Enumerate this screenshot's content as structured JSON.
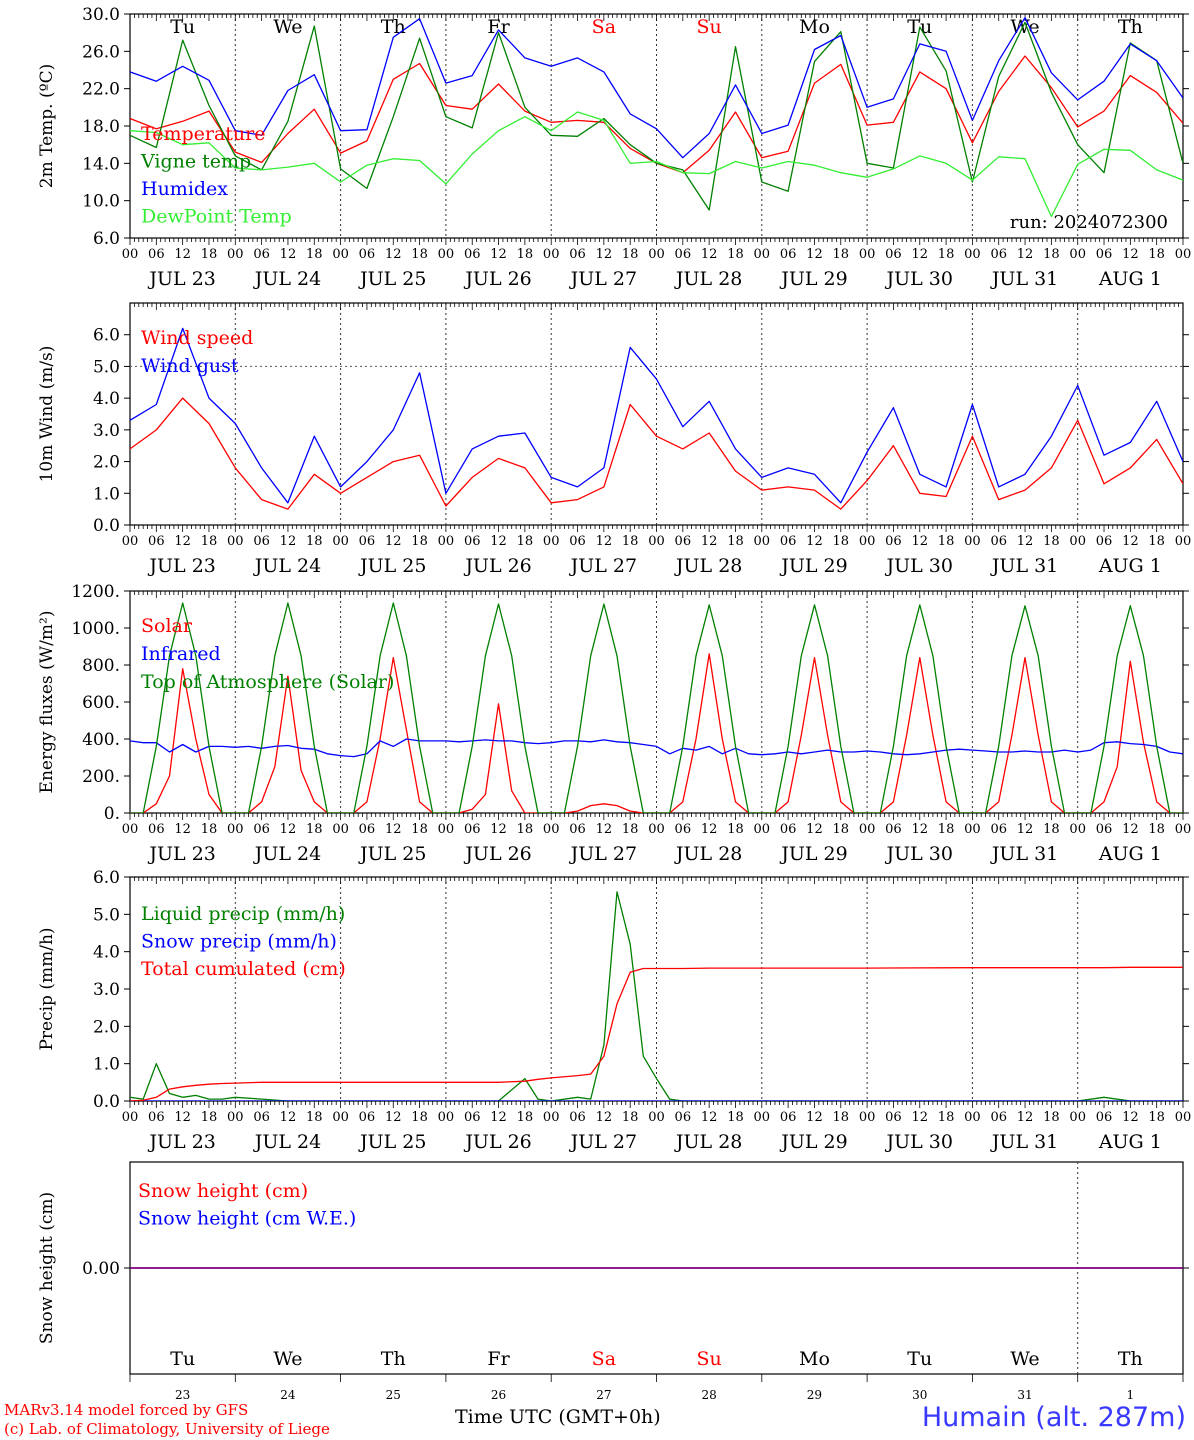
{
  "colors": {
    "red": "#ff0000",
    "green": "#008000",
    "blue": "#0000ff",
    "lightgreen": "#33ee33",
    "purple": "#7f007f",
    "weekend": "#ff0000"
  },
  "weekdays": [
    "Tu",
    "We",
    "Th",
    "Fr",
    "Sa",
    "Su",
    "Mo",
    "Tu",
    "We",
    "Th"
  ],
  "weekend_days": [
    "Sa",
    "Su"
  ],
  "dates": [
    "JUL 23",
    "JUL 24",
    "JUL 25",
    "JUL 26",
    "JUL 27",
    "JUL 28",
    "JUL 29",
    "JUL 30",
    "JUL 31",
    "AUG  1"
  ],
  "day_numbers": [
    "23",
    "24",
    "25",
    "26",
    "27",
    "28",
    "29",
    "30",
    "31",
    "1"
  ],
  "hour_ticks": [
    "00",
    "06",
    "12",
    "18"
  ],
  "run_label": "run: 2024072300",
  "footer": {
    "credit_line1": "MARv3.14 model forced by GFS",
    "credit_line2": "(c) Lab. of Climatology, University of Liege",
    "xaxis_label": "Time UTC (GMT+0h)",
    "station": "Humain (alt. 287m)"
  },
  "chart_data": [
    {
      "type": "line",
      "ylabel": "2m Temp. (ºC)",
      "ylim": [
        6,
        30
      ],
      "yticks": [
        "6.0",
        "10.0",
        "14.0",
        "18.0",
        "22.0",
        "26.0",
        "30.0"
      ],
      "ytick_values": [
        6,
        10,
        14,
        18,
        22,
        26,
        30
      ],
      "x_hours": [
        0,
        6,
        12,
        18,
        24,
        30,
        36,
        42,
        48,
        54,
        60,
        66,
        72,
        78,
        84,
        90,
        96,
        102,
        108,
        114,
        120,
        126,
        132,
        138,
        144,
        150,
        156,
        162,
        168,
        174,
        180,
        186,
        192,
        198,
        204,
        210,
        216,
        222,
        228,
        234,
        240
      ],
      "series": [
        {
          "name": "Temperature",
          "color": "red",
          "values": [
            18.8,
            17.7,
            18.5,
            19.6,
            15.2,
            14.1,
            17.2,
            19.8,
            15.1,
            16.4,
            23.0,
            24.7,
            20.2,
            19.8,
            22.5,
            19.6,
            18.4,
            18.6,
            18.4,
            15.6,
            14.0,
            13.0,
            15.4,
            19.5,
            14.6,
            15.3,
            22.6,
            24.6,
            18.1,
            18.4,
            23.8,
            22.0,
            16.2,
            21.7,
            25.5,
            22.1,
            17.9,
            19.6,
            23.4,
            21.6,
            18.3
          ]
        },
        {
          "name": "Vigne temp",
          "color": "green",
          "values": [
            17.0,
            15.7,
            27.2,
            20.2,
            14.8,
            13.3,
            18.5,
            28.7,
            13.4,
            11.3,
            19.0,
            27.4,
            19.0,
            17.8,
            28.0,
            20.0,
            17.0,
            16.9,
            18.8,
            16.0,
            14.0,
            13.3,
            9.0,
            26.5,
            12.0,
            11.0,
            24.9,
            28.1,
            14.0,
            13.5,
            28.6,
            23.9,
            12.0,
            23.3,
            29.1,
            21.6,
            16.0,
            13.0,
            26.9,
            25.0,
            14.0
          ]
        },
        {
          "name": "Humidex",
          "color": "blue",
          "values": [
            23.8,
            22.8,
            24.4,
            22.9,
            17.5,
            17.0,
            21.8,
            23.5,
            17.5,
            17.6,
            27.5,
            29.5,
            22.6,
            23.4,
            28.3,
            25.3,
            24.4,
            25.3,
            23.8,
            19.3,
            17.7,
            14.6,
            17.2,
            22.4,
            17.2,
            18.1,
            26.2,
            27.7,
            20.0,
            20.9,
            26.8,
            26.0,
            18.6,
            25.0,
            29.6,
            23.7,
            20.8,
            22.8,
            26.8,
            25.0,
            21.0
          ]
        },
        {
          "name": "DewPoint Temp",
          "color": "lightgreen",
          "values": [
            17.5,
            17.3,
            16.0,
            16.2,
            13.5,
            13.3,
            13.6,
            14.0,
            12.0,
            13.8,
            14.5,
            14.3,
            11.8,
            15.0,
            17.5,
            19.0,
            17.5,
            19.5,
            18.6,
            14.0,
            14.2,
            13.0,
            12.9,
            14.2,
            13.5,
            14.2,
            13.8,
            13.0,
            12.5,
            13.4,
            14.8,
            14.0,
            12.2,
            14.7,
            14.5,
            8.3,
            13.9,
            15.5,
            15.4,
            13.3,
            12.2
          ]
        }
      ]
    },
    {
      "type": "line",
      "ylabel": "10m Wind (m/s)",
      "ylim": [
        0,
        7
      ],
      "yticks": [
        "0.0",
        "1.0",
        "2.0",
        "3.0",
        "4.0",
        "5.0",
        "6.0"
      ],
      "ytick_values": [
        0,
        1,
        2,
        3,
        4,
        5,
        6
      ],
      "reference_line": 5.0,
      "x_hours": [
        0,
        6,
        12,
        18,
        24,
        30,
        36,
        42,
        48,
        54,
        60,
        66,
        72,
        78,
        84,
        90,
        96,
        102,
        108,
        114,
        120,
        126,
        132,
        138,
        144,
        150,
        156,
        162,
        168,
        174,
        180,
        186,
        192,
        198,
        204,
        210,
        216,
        222,
        228,
        234,
        240
      ],
      "series": [
        {
          "name": "Wind speed",
          "color": "red",
          "values": [
            2.4,
            3.0,
            4.0,
            3.2,
            1.8,
            0.8,
            0.5,
            1.6,
            1.0,
            1.5,
            2.0,
            2.2,
            0.6,
            1.5,
            2.1,
            1.8,
            0.7,
            0.8,
            1.2,
            3.8,
            2.8,
            2.4,
            2.9,
            1.7,
            1.1,
            1.2,
            1.1,
            0.5,
            1.4,
            2.5,
            1.0,
            0.9,
            2.8,
            0.8,
            1.1,
            1.8,
            3.3,
            1.3,
            1.8,
            2.7,
            1.3
          ]
        },
        {
          "name": "Wind gust",
          "color": "blue",
          "values": [
            3.3,
            3.8,
            6.2,
            4.0,
            3.2,
            1.8,
            0.7,
            2.8,
            1.2,
            2.0,
            3.0,
            4.8,
            1.0,
            2.4,
            2.8,
            2.9,
            1.5,
            1.2,
            1.8,
            5.6,
            4.6,
            3.1,
            3.9,
            2.4,
            1.5,
            1.8,
            1.6,
            0.7,
            2.3,
            3.7,
            1.6,
            1.2,
            3.8,
            1.2,
            1.6,
            2.8,
            4.4,
            2.2,
            2.6,
            3.9,
            2.0
          ]
        }
      ]
    },
    {
      "type": "line",
      "ylabel": "Energy fluxes (W/m²)",
      "ylim": [
        0,
        1200
      ],
      "yticks": [
        "0.",
        "200.",
        "400.",
        "600.",
        "800.",
        "1000.",
        "1200."
      ],
      "ytick_values": [
        0,
        200,
        400,
        600,
        800,
        1000,
        1200
      ],
      "x_hours": [
        0,
        3,
        6,
        9,
        12,
        15,
        18,
        21,
        24,
        27,
        30,
        33,
        36,
        39,
        42,
        45,
        48,
        51,
        54,
        57,
        60,
        63,
        66,
        69,
        72,
        75,
        78,
        81,
        84,
        87,
        90,
        93,
        96,
        99,
        102,
        105,
        108,
        111,
        114,
        117,
        120,
        123,
        126,
        129,
        132,
        135,
        138,
        141,
        144,
        147,
        150,
        153,
        156,
        159,
        162,
        165,
        168,
        171,
        174,
        177,
        180,
        183,
        186,
        189,
        192,
        195,
        198,
        201,
        204,
        207,
        210,
        213,
        216,
        219,
        222,
        225,
        228,
        231,
        234,
        237,
        240
      ],
      "series": [
        {
          "name": "Solar",
          "color": "red",
          "values": [
            0,
            0,
            50,
            200,
            780,
            400,
            100,
            0,
            0,
            0,
            60,
            250,
            740,
            230,
            60,
            0,
            0,
            0,
            60,
            400,
            840,
            450,
            60,
            0,
            0,
            0,
            20,
            100,
            590,
            120,
            0,
            0,
            0,
            0,
            10,
            40,
            50,
            40,
            10,
            0,
            0,
            0,
            60,
            400,
            860,
            400,
            60,
            0,
            0,
            0,
            60,
            420,
            840,
            420,
            60,
            0,
            0,
            0,
            60,
            420,
            840,
            420,
            60,
            0,
            0,
            0,
            60,
            420,
            840,
            420,
            60,
            0,
            0,
            0,
            60,
            250,
            820,
            380,
            60,
            0,
            0
          ]
        },
        {
          "name": "Infrared",
          "color": "blue",
          "values": [
            390,
            380,
            380,
            330,
            370,
            330,
            360,
            360,
            355,
            360,
            350,
            360,
            365,
            350,
            345,
            320,
            310,
            305,
            320,
            390,
            360,
            400,
            390,
            390,
            390,
            385,
            390,
            395,
            390,
            390,
            380,
            375,
            380,
            390,
            390,
            385,
            395,
            385,
            380,
            370,
            360,
            320,
            350,
            340,
            360,
            320,
            350,
            320,
            315,
            320,
            330,
            320,
            330,
            340,
            330,
            330,
            335,
            330,
            320,
            315,
            320,
            330,
            340,
            345,
            340,
            335,
            330,
            330,
            335,
            330,
            330,
            340,
            330,
            340,
            380,
            385,
            375,
            370,
            360,
            330,
            320
          ]
        },
        {
          "name": "Top of Atmosphere (Solar)",
          "color": "green",
          "values": [
            0,
            0,
            360,
            850,
            1135,
            850,
            360,
            0,
            0,
            0,
            360,
            850,
            1135,
            850,
            360,
            0,
            0,
            0,
            360,
            850,
            1135,
            850,
            360,
            0,
            0,
            0,
            360,
            850,
            1130,
            850,
            360,
            0,
            0,
            0,
            360,
            850,
            1130,
            850,
            360,
            0,
            0,
            0,
            360,
            850,
            1125,
            850,
            360,
            0,
            0,
            0,
            360,
            850,
            1125,
            850,
            360,
            0,
            0,
            0,
            360,
            850,
            1125,
            850,
            360,
            0,
            0,
            0,
            360,
            850,
            1120,
            850,
            360,
            0,
            0,
            0,
            360,
            850,
            1120,
            850,
            360,
            0,
            0
          ]
        }
      ]
    },
    {
      "type": "line",
      "ylabel": "Precip (mm/h)",
      "ylim": [
        0,
        6
      ],
      "yticks": [
        "0.0",
        "1.0",
        "2.0",
        "3.0",
        "4.0",
        "5.0",
        "6.0"
      ],
      "ytick_values": [
        0,
        1,
        2,
        3,
        4,
        5,
        6
      ],
      "x_hours": [
        0,
        3,
        6,
        9,
        12,
        15,
        18,
        21,
        24,
        30,
        36,
        48,
        60,
        72,
        84,
        90,
        93,
        96,
        102,
        105,
        108,
        111,
        114,
        117,
        120,
        123,
        126,
        132,
        144,
        168,
        192,
        216,
        222,
        228,
        240
      ],
      "series": [
        {
          "name": "Liquid precip (mm/h)",
          "color": "green",
          "values": [
            0.1,
            0.05,
            1.0,
            0.2,
            0.1,
            0.15,
            0.05,
            0.05,
            0.1,
            0.05,
            0,
            0,
            0,
            0,
            0,
            0.6,
            0.05,
            0,
            0.1,
            0.05,
            1.5,
            5.6,
            4.2,
            1.2,
            0.6,
            0.05,
            0,
            0,
            0,
            0,
            0,
            0,
            0.1,
            0,
            0
          ]
        },
        {
          "name": "Snow precip (mm/h)",
          "color": "blue",
          "values": [
            0,
            0,
            0,
            0,
            0,
            0,
            0,
            0,
            0,
            0,
            0,
            0,
            0,
            0,
            0,
            0,
            0,
            0,
            0,
            0,
            0,
            0,
            0,
            0,
            0,
            0,
            0,
            0,
            0,
            0,
            0,
            0,
            0,
            0,
            0
          ]
        },
        {
          "name": "Total cumulated (cm)",
          "color": "red",
          "values": [
            0,
            0.02,
            0.1,
            0.32,
            0.38,
            0.42,
            0.45,
            0.47,
            0.48,
            0.5,
            0.5,
            0.5,
            0.5,
            0.5,
            0.5,
            0.53,
            0.58,
            0.62,
            0.68,
            0.72,
            1.2,
            2.6,
            3.45,
            3.55,
            3.55,
            3.55,
            3.55,
            3.56,
            3.56,
            3.56,
            3.57,
            3.57,
            3.57,
            3.58,
            3.58
          ]
        }
      ]
    },
    {
      "type": "line",
      "ylabel": "Snow height (cm)",
      "ylim": [
        -1,
        1
      ],
      "yticks": [
        "0.00"
      ],
      "ytick_values": [
        0
      ],
      "x_hours": [
        0,
        240
      ],
      "series": [
        {
          "name": "Snow height (cm)",
          "color": "red",
          "values": [
            0,
            0
          ]
        },
        {
          "name": "Snow height (cm W.E.)",
          "color": "blue",
          "values": [
            0,
            0
          ]
        }
      ]
    }
  ]
}
